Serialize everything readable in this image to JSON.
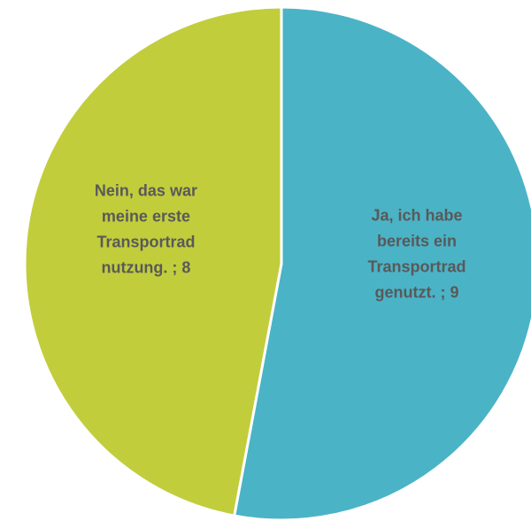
{
  "chart_data": {
    "type": "pie",
    "values": [
      9,
      8
    ],
    "value_labels": [
      "Ja, ich habe bereits ein Transportrad genutzt. ; 9",
      "Nein, das war meine erste Transportrad nutzung. ; 8"
    ],
    "colors": [
      "#4bb3c6",
      "#c2cd3c"
    ]
  }
}
